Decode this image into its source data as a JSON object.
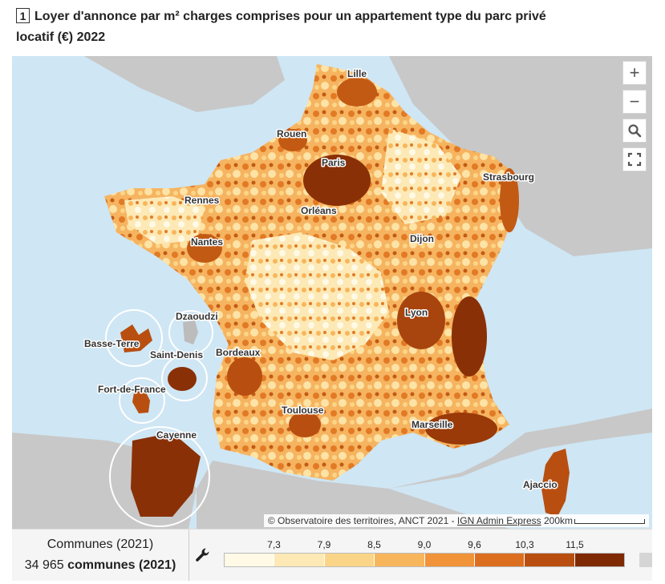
{
  "title": {
    "number": "1",
    "text": "Loyer d'annonce par m² charges comprises pour un appartement type du parc privé locatif (€) 2022"
  },
  "map": {
    "cities": [
      "Lille",
      "Rouen",
      "Paris",
      "Strasbourg",
      "Rennes",
      "Orléans",
      "Nantes",
      "Dijon",
      "Lyon",
      "Dzaoudzi",
      "Basse-Terre",
      "Saint-Denis",
      "Bordeaux",
      "Fort-de-France",
      "Toulouse",
      "Marseille",
      "Cayenne",
      "Ajaccio"
    ],
    "attribution_prefix": "© Observatoire des territoires, ANCT 2021 - ",
    "attribution_link": "IGN Admin Express",
    "scale_label": "200km",
    "zoom_in_symbol": "+",
    "zoom_out_symbol": "−",
    "icons": [
      "plus-icon",
      "minus-icon",
      "search-icon",
      "fullscreen-icon",
      "wrench-icon"
    ]
  },
  "selection": {
    "label": "Communes (2021)",
    "count_value": "34 965",
    "count_unit": "communes (2021)"
  },
  "legend": {
    "thresholds": [
      "7,3",
      "7,9",
      "8,5",
      "9,0",
      "9,6",
      "10,3",
      "11,5"
    ],
    "colors": [
      "#fff9e6",
      "#fde9b5",
      "#fbd587",
      "#f8b65c",
      "#f09339",
      "#dc6e20",
      "#b84f10",
      "#7f2a04"
    ],
    "no_data_color": "#d5d5d5"
  }
}
